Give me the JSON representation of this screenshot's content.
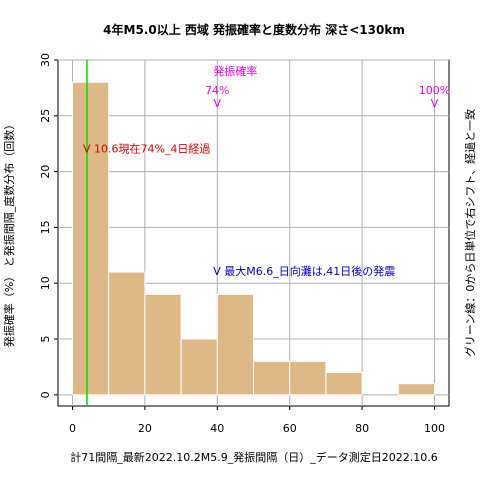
{
  "chart_data": {
    "type": "bar",
    "title": "4年M5.0以上 西域 発振確率と度数分布 深さ<130km",
    "ylabel": "発振確率（%） と発振間隔_度数分布（回数）",
    "ylabel_right": "グリーン線：0から日単位で右シフト、経過と一致",
    "footer": "計71間隔_最新2022.10.2M5.9_発振間隔（日）_データ測定日2022.10.6",
    "xlim": [
      -4,
      104
    ],
    "ylim": [
      -1,
      30
    ],
    "x_ticks": [
      0,
      20,
      40,
      60,
      80,
      100
    ],
    "y_ticks": [
      0,
      5,
      10,
      15,
      20,
      25,
      30
    ],
    "grid": true,
    "bins": [
      {
        "x0": 0,
        "x1": 10,
        "count": 28
      },
      {
        "x0": 10,
        "x1": 20,
        "count": 11
      },
      {
        "x0": 20,
        "x1": 30,
        "count": 9
      },
      {
        "x0": 30,
        "x1": 40,
        "count": 5
      },
      {
        "x0": 40,
        "x1": 50,
        "count": 9
      },
      {
        "x0": 50,
        "x1": 60,
        "count": 3
      },
      {
        "x0": 60,
        "x1": 70,
        "count": 3
      },
      {
        "x0": 70,
        "x1": 80,
        "count": 2
      },
      {
        "x0": 80,
        "x1": 90,
        "count": 0
      },
      {
        "x0": 90,
        "x1": 100,
        "count": 1
      }
    ],
    "green_line_x": 4,
    "probability_label": "発振確率",
    "probability_markers": [
      {
        "x": 40,
        "label": "74%"
      },
      {
        "x": 100,
        "label": "100%"
      }
    ],
    "annotations": [
      {
        "x": 4,
        "y": 22,
        "text": "V 10.6現在74%_4日経過",
        "color": "#dd0000"
      },
      {
        "x": 40,
        "y": 11,
        "text": "V 最大M6.6_日向灘は,41日後の発震",
        "color": "#0000cc"
      }
    ],
    "colors": {
      "bar_fill": "#deb887",
      "bar_stroke": "#ffffff",
      "grid": "#b0b0b0",
      "green_line": "#00dd00",
      "probability": "#ee00ee"
    }
  }
}
